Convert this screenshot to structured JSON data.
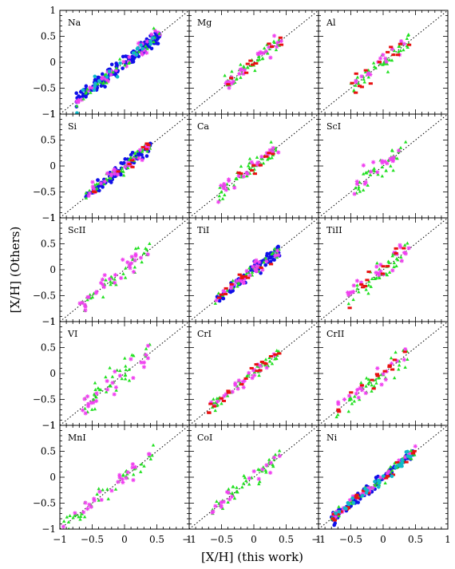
{
  "figure": {
    "xlabel": "[X/H] (this work)",
    "ylabel": "[X/H] (Others)",
    "xlim": [
      -1,
      1
    ],
    "ylim": [
      -1,
      1
    ],
    "x_ticks": [
      "−1",
      "−0.5",
      "0",
      "0.5",
      "1"
    ],
    "y_ticks": [
      "1",
      "0.5",
      "0",
      "−0.5",
      "−1"
    ],
    "one_to_one_line": "dotted",
    "grid": false
  },
  "colors": {
    "blue": "#1010e8",
    "green": "#22e022",
    "magenta": "#f040f0",
    "red": "#e81010",
    "cyan": "#10b8c8",
    "black": "#000000"
  },
  "chart_data": [
    {
      "type": "scatter",
      "panel": "Na",
      "spread": 0.07,
      "range": [
        -0.75,
        0.55
      ],
      "series": [
        {
          "color": "blue",
          "marker": "circle",
          "n": 150
        },
        {
          "color": "magenta",
          "marker": "star",
          "n": 40
        },
        {
          "color": "green",
          "marker": "triangle",
          "n": 30
        },
        {
          "color": "cyan",
          "marker": "circle",
          "n": 20
        }
      ]
    },
    {
      "type": "scatter",
      "panel": "Mg",
      "spread": 0.07,
      "range": [
        -0.45,
        0.45
      ],
      "series": [
        {
          "color": "green",
          "marker": "triangle",
          "n": 45
        },
        {
          "color": "magenta",
          "marker": "star",
          "n": 25
        },
        {
          "color": "red",
          "marker": "rect",
          "n": 12
        }
      ]
    },
    {
      "type": "scatter",
      "panel": "Al",
      "spread": 0.09,
      "range": [
        -0.5,
        0.45
      ],
      "series": [
        {
          "color": "green",
          "marker": "triangle",
          "n": 45
        },
        {
          "color": "magenta",
          "marker": "star",
          "n": 15
        },
        {
          "color": "red",
          "marker": "rect",
          "n": 14
        }
      ]
    },
    {
      "type": "scatter",
      "panel": "Si",
      "spread": 0.06,
      "range": [
        -0.6,
        0.4
      ],
      "series": [
        {
          "color": "blue",
          "marker": "circle",
          "n": 90
        },
        {
          "color": "green",
          "marker": "triangle",
          "n": 50
        },
        {
          "color": "magenta",
          "marker": "star",
          "n": 30
        },
        {
          "color": "red",
          "marker": "rect",
          "n": 10
        }
      ]
    },
    {
      "type": "scatter",
      "panel": "Ca",
      "spread": 0.08,
      "range": [
        -0.55,
        0.4
      ],
      "series": [
        {
          "color": "green",
          "marker": "triangle",
          "n": 55
        },
        {
          "color": "magenta",
          "marker": "star",
          "n": 25
        },
        {
          "color": "red",
          "marker": "rect",
          "n": 10
        }
      ]
    },
    {
      "type": "scatter",
      "panel": "ScI",
      "spread": 0.1,
      "range": [
        -0.45,
        0.35
      ],
      "series": [
        {
          "color": "green",
          "marker": "triangle",
          "n": 35
        },
        {
          "color": "magenta",
          "marker": "star",
          "n": 20
        }
      ]
    },
    {
      "type": "scatter",
      "panel": "ScII",
      "spread": 0.1,
      "range": [
        -0.7,
        0.4
      ],
      "series": [
        {
          "color": "green",
          "marker": "triangle",
          "n": 40
        },
        {
          "color": "magenta",
          "marker": "star",
          "n": 30
        }
      ]
    },
    {
      "type": "scatter",
      "panel": "TiI",
      "spread": 0.06,
      "range": [
        -0.6,
        0.4
      ],
      "series": [
        {
          "color": "blue",
          "marker": "circle",
          "n": 90
        },
        {
          "color": "green",
          "marker": "triangle",
          "n": 40
        },
        {
          "color": "magenta",
          "marker": "star",
          "n": 30
        },
        {
          "color": "red",
          "marker": "rect",
          "n": 12
        }
      ]
    },
    {
      "type": "scatter",
      "panel": "TiII",
      "spread": 0.12,
      "range": [
        -0.55,
        0.4
      ],
      "series": [
        {
          "color": "green",
          "marker": "triangle",
          "n": 45
        },
        {
          "color": "magenta",
          "marker": "star",
          "n": 25
        },
        {
          "color": "red",
          "marker": "rect",
          "n": 12
        }
      ]
    },
    {
      "type": "scatter",
      "panel": "VI",
      "spread": 0.15,
      "range": [
        -0.65,
        0.45
      ],
      "series": [
        {
          "color": "green",
          "marker": "triangle",
          "n": 40
        },
        {
          "color": "magenta",
          "marker": "star",
          "n": 25
        }
      ]
    },
    {
      "type": "scatter",
      "panel": "CrI",
      "spread": 0.06,
      "range": [
        -0.75,
        0.4
      ],
      "series": [
        {
          "color": "green",
          "marker": "triangle",
          "n": 45
        },
        {
          "color": "magenta",
          "marker": "star",
          "n": 25
        },
        {
          "color": "red",
          "marker": "rect",
          "n": 20
        }
      ]
    },
    {
      "type": "scatter",
      "panel": "CrII",
      "spread": 0.1,
      "range": [
        -0.75,
        0.4
      ],
      "series": [
        {
          "color": "green",
          "marker": "triangle",
          "n": 40
        },
        {
          "color": "magenta",
          "marker": "star",
          "n": 20
        },
        {
          "color": "red",
          "marker": "rect",
          "n": 14
        }
      ]
    },
    {
      "type": "scatter",
      "panel": "MnI",
      "spread": 0.08,
      "range": [
        -0.95,
        0.45
      ],
      "series": [
        {
          "color": "green",
          "marker": "triangle",
          "n": 45
        },
        {
          "color": "magenta",
          "marker": "star",
          "n": 25
        }
      ]
    },
    {
      "type": "scatter",
      "panel": "CoI",
      "spread": 0.08,
      "range": [
        -0.65,
        0.4
      ],
      "series": [
        {
          "color": "green",
          "marker": "triangle",
          "n": 45
        },
        {
          "color": "magenta",
          "marker": "star",
          "n": 20
        }
      ]
    },
    {
      "type": "scatter",
      "panel": "Ni",
      "spread": 0.05,
      "range": [
        -0.8,
        0.5
      ],
      "series": [
        {
          "color": "blue",
          "marker": "circle",
          "n": 90
        },
        {
          "color": "green",
          "marker": "triangle",
          "n": 60
        },
        {
          "color": "magenta",
          "marker": "star",
          "n": 30
        },
        {
          "color": "red",
          "marker": "rect",
          "n": 20
        },
        {
          "color": "cyan",
          "marker": "circle",
          "n": 30
        }
      ]
    }
  ]
}
